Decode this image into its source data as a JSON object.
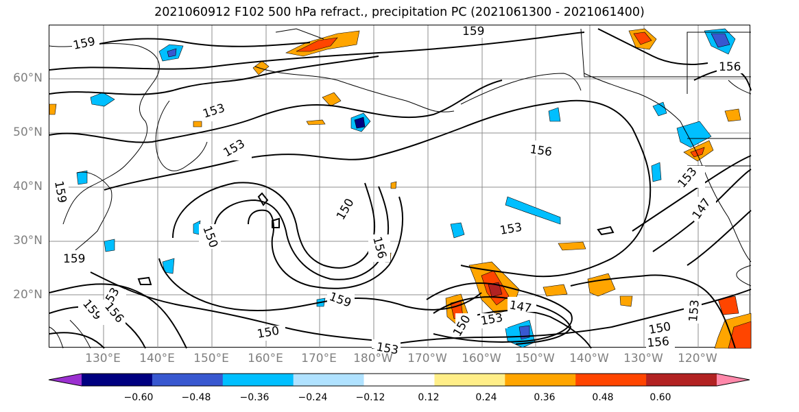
{
  "title": "2021060912 F102 500 hPa refract., precipitation PC (2021061300 - 2021061400)",
  "lat_labels": [
    "60°N",
    "50°N",
    "40°N",
    "30°N",
    "20°N"
  ],
  "lon_labels": [
    "130°E",
    "140°E",
    "150°E",
    "160°E",
    "170°E",
    "180°W",
    "170°W",
    "160°W",
    "150°W",
    "140°W",
    "130°W",
    "120°W"
  ],
  "contour_labels": [
    "159",
    "159",
    "156",
    "153",
    "153",
    "150",
    "150",
    "156",
    "159",
    "153",
    "156",
    "150",
    "153",
    "147",
    "153",
    "150",
    "153",
    "159",
    "159",
    "153",
    "156",
    "159",
    "150",
    "156",
    "153",
    "147"
  ],
  "colorbar": {
    "tick_labels": [
      "−0.60",
      "−0.48",
      "−0.36",
      "−0.24",
      "−0.12",
      "0.12",
      "0.24",
      "0.36",
      "0.48",
      "0.60"
    ],
    "colors": [
      "#9b30d0",
      "#000080",
      "#3858d0",
      "#00bfff",
      "#b0e2ff",
      "#ffffff",
      "#ffee88",
      "#ffa500",
      "#ff4500",
      "#b22222",
      "#ff88aa"
    ]
  }
}
